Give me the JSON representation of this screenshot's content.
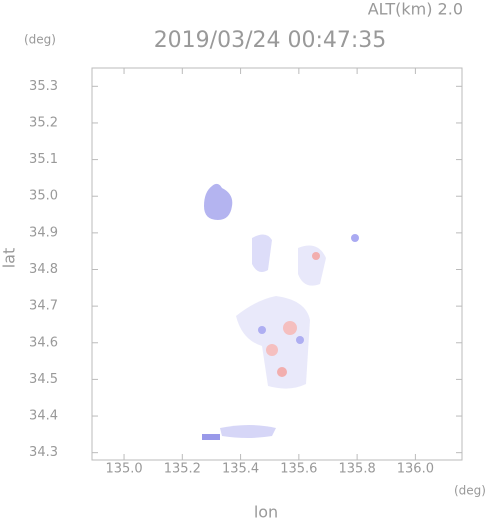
{
  "chart_data": {
    "type": "field",
    "altitude_label": "ALT(km) 2.0",
    "title": "2019/03/24 00:47:35",
    "y_unit": "(deg)",
    "x_unit": "(deg)",
    "ylabel": "lat",
    "xlabel": "lon",
    "xlim": [
      134.89,
      136.16
    ],
    "ylim": [
      34.28,
      35.35
    ],
    "xticks": [
      {
        "value": 135,
        "label": "135.0"
      },
      135.2,
      135.4,
      135.6,
      135.8,
      {
        "value": 136,
        "label": "136.0"
      }
    ],
    "yticks": [
      {
        "value": 34.3,
        "label": "34.3"
      },
      34.4,
      34.5,
      34.6,
      34.7,
      34.8,
      34.9,
      {
        "value": 35,
        "label": "35.0"
      },
      35.1,
      35.2,
      35.3
    ]
  }
}
